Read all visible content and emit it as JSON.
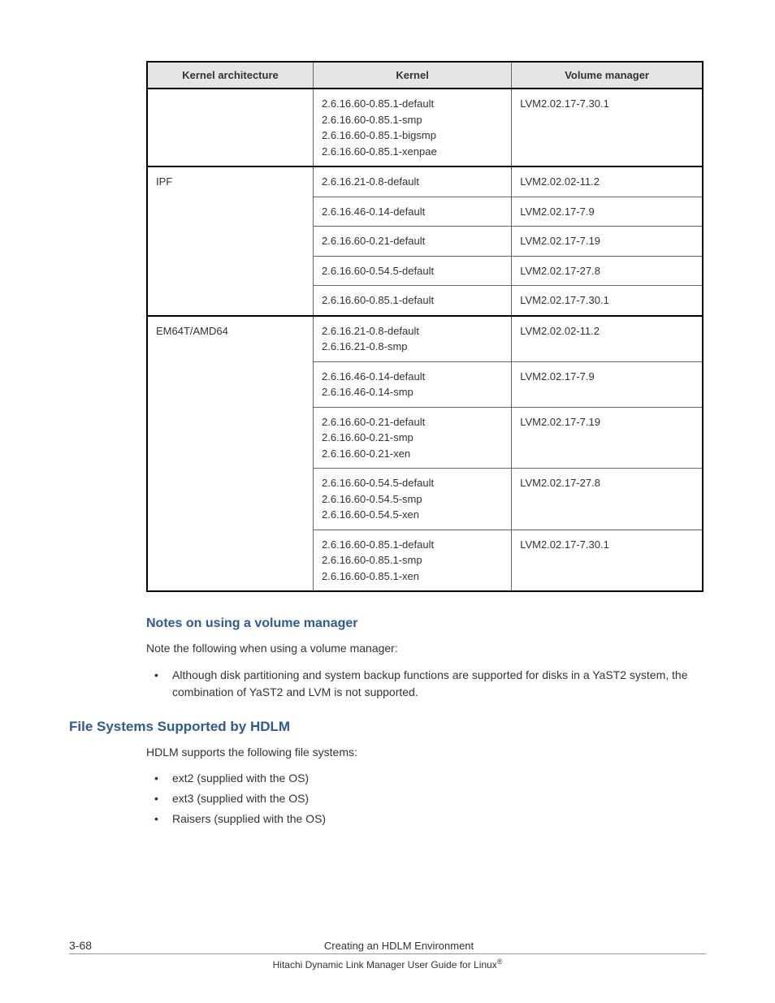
{
  "table": {
    "headers": [
      "Kernel architecture",
      "Kernel",
      "Volume manager"
    ],
    "rows": [
      {
        "arch": "",
        "kernel": "2.6.16.60-0.85.1-default\n2.6.16.60-0.85.1-smp\n2.6.16.60-0.85.1-bigsmp\n2.6.16.60-0.85.1-xenpae",
        "volume": "LVM2.02.17-7.30.1"
      },
      {
        "arch": "IPF",
        "kernel": "2.6.16.21-0.8-default",
        "volume": "LVM2.02.02-11.2"
      },
      {
        "arch": "",
        "kernel": "2.6.16.46-0.14-default",
        "volume": "LVM2.02.17-7.9"
      },
      {
        "arch": "",
        "kernel": "2.6.16.60-0.21-default",
        "volume": "LVM2.02.17-7.19"
      },
      {
        "arch": "",
        "kernel": "2.6.16.60-0.54.5-default",
        "volume": "LVM2.02.17-27.8"
      },
      {
        "arch": "",
        "kernel": "2.6.16.60-0.85.1-default",
        "volume": "LVM2.02.17-7.30.1"
      },
      {
        "arch": "EM64T/AMD64",
        "kernel": "2.6.16.21-0.8-default\n2.6.16.21-0.8-smp",
        "volume": "LVM2.02.02-11.2"
      },
      {
        "arch": "",
        "kernel": "2.6.16.46-0.14-default\n2.6.16.46-0.14-smp",
        "volume": "LVM2.02.17-7.9"
      },
      {
        "arch": "",
        "kernel": "2.6.16.60-0.21-default\n2.6.16.60-0.21-smp\n2.6.16.60-0.21-xen",
        "volume": "LVM2.02.17-7.19"
      },
      {
        "arch": "",
        "kernel": "2.6.16.60-0.54.5-default\n2.6.16.60-0.54.5-smp\n2.6.16.60-0.54.5-xen",
        "volume": "LVM2.02.17-27.8"
      },
      {
        "arch": "",
        "kernel": "2.6.16.60-0.85.1-default\n2.6.16.60-0.85.1-smp\n2.6.16.60-0.85.1-xen",
        "volume": "LVM2.02.17-7.30.1"
      }
    ]
  },
  "sections": {
    "notes_heading": "Notes on using a volume manager",
    "notes_intro": "Note the following when using a volume manager:",
    "notes_bullet": "Although disk partitioning and system backup functions are supported for disks in a YaST2 system, the combination of YaST2 and LVM is not supported.",
    "filesystems_heading": "File Systems Supported by HDLM",
    "filesystems_intro": "HDLM supports the following file systems:",
    "filesystems_bullets": [
      "ext2 (supplied with the OS)",
      "ext3 (supplied with the OS)",
      "Raisers (supplied with the OS)"
    ]
  },
  "footer": {
    "page": "3-68",
    "title": "Creating an HDLM Environment",
    "subtitle_prefix": "Hitachi Dynamic Link Manager User Guide for Linux",
    "subtitle_suffix": "®"
  }
}
